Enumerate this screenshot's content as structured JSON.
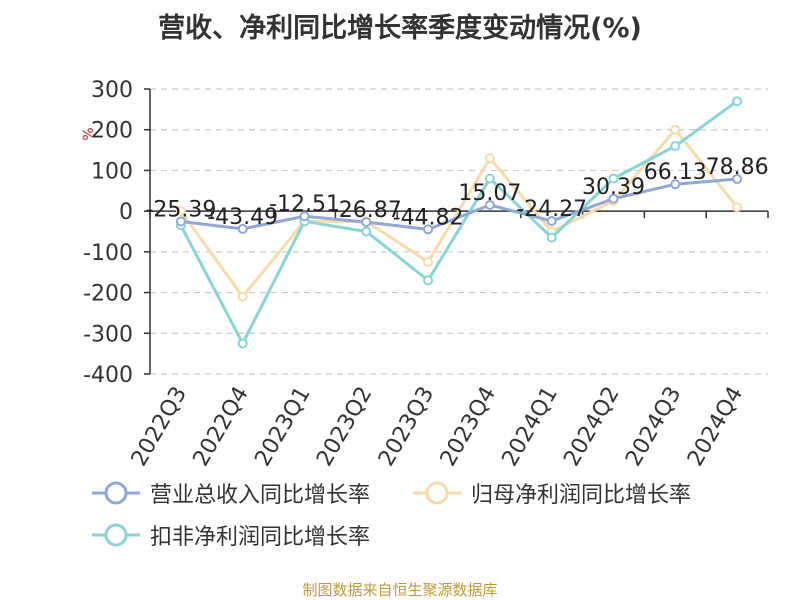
{
  "title": "营收、净利同比增长率季度变动情况(%)",
  "source": "制图数据来自恒生聚源数据库",
  "chart_data": {
    "type": "line",
    "title": "营收、净利同比增长率季度变动情况(%)",
    "ylabel": "%",
    "xlabel": "",
    "ylim": [
      -400,
      300
    ],
    "yticks": [
      300,
      200,
      100,
      0,
      -100,
      -200,
      -300,
      -400
    ],
    "categories": [
      "2022Q3",
      "2022Q4",
      "2023Q1",
      "2023Q2",
      "2023Q3",
      "2023Q4",
      "2024Q1",
      "2024Q2",
      "2024Q3",
      "2024Q4"
    ],
    "grid": true,
    "legend_position": "bottom",
    "series": [
      {
        "name": "营业总收入同比增长率",
        "color": "#8fa8d8",
        "values": [
          -25.39,
          -43.49,
          -12.51,
          -26.87,
          -44.82,
          15.07,
          -24.27,
          30.39,
          66.13,
          78.86
        ],
        "labels": [
          "-25.39",
          "-43.49",
          "-12.51",
          "-26.87",
          "-44.82",
          "15.07",
          "-24.27",
          "30.39",
          "66.13",
          "78.86"
        ]
      },
      {
        "name": "归母净利润同比增长率",
        "color": "#f8dba8",
        "values": [
          0,
          -210,
          -25,
          -25,
          -125,
          130,
          -50,
          25,
          200,
          10
        ]
      },
      {
        "name": "扣非净利润同比增长率",
        "color": "#88d4d6",
        "values": [
          -35,
          -325,
          -25,
          -50,
          -170,
          80,
          -65,
          80,
          160,
          270
        ]
      }
    ]
  }
}
